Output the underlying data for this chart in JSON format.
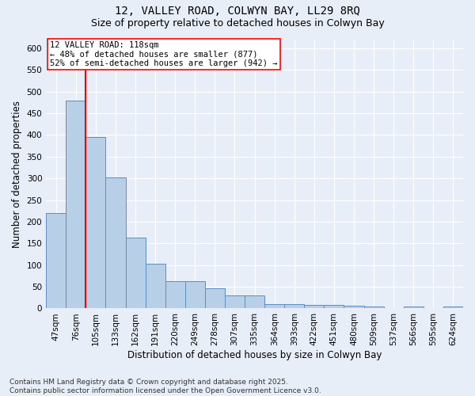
{
  "title_line1": "12, VALLEY ROAD, COLWYN BAY, LL29 8RQ",
  "title_line2": "Size of property relative to detached houses in Colwyn Bay",
  "xlabel": "Distribution of detached houses by size in Colwyn Bay",
  "ylabel": "Number of detached properties",
  "categories": [
    "47sqm",
    "76sqm",
    "105sqm",
    "133sqm",
    "162sqm",
    "191sqm",
    "220sqm",
    "249sqm",
    "278sqm",
    "307sqm",
    "335sqm",
    "364sqm",
    "393sqm",
    "422sqm",
    "451sqm",
    "480sqm",
    "509sqm",
    "537sqm",
    "566sqm",
    "595sqm",
    "624sqm"
  ],
  "values": [
    220,
    480,
    395,
    302,
    163,
    104,
    63,
    63,
    47,
    30,
    30,
    10,
    10,
    8,
    8,
    7,
    4,
    0,
    4,
    0,
    4
  ],
  "bar_color": "#b8cfe8",
  "bar_edge_color": "#5b8ec4",
  "background_color": "#e8eef8",
  "grid_color": "#ffffff",
  "vline_x": 1.5,
  "vline_color": "red",
  "annotation_text": "12 VALLEY ROAD: 118sqm\n← 48% of detached houses are smaller (877)\n52% of semi-detached houses are larger (942) →",
  "annotation_box_color": "white",
  "annotation_box_edge": "red",
  "ylim": [
    0,
    620
  ],
  "yticks": [
    0,
    50,
    100,
    150,
    200,
    250,
    300,
    350,
    400,
    450,
    500,
    550,
    600
  ],
  "footnote": "Contains HM Land Registry data © Crown copyright and database right 2025.\nContains public sector information licensed under the Open Government Licence v3.0.",
  "title_fontsize": 10,
  "subtitle_fontsize": 9,
  "axis_label_fontsize": 8.5,
  "tick_fontsize": 7.5,
  "annotation_fontsize": 7.5,
  "footnote_fontsize": 6.5
}
